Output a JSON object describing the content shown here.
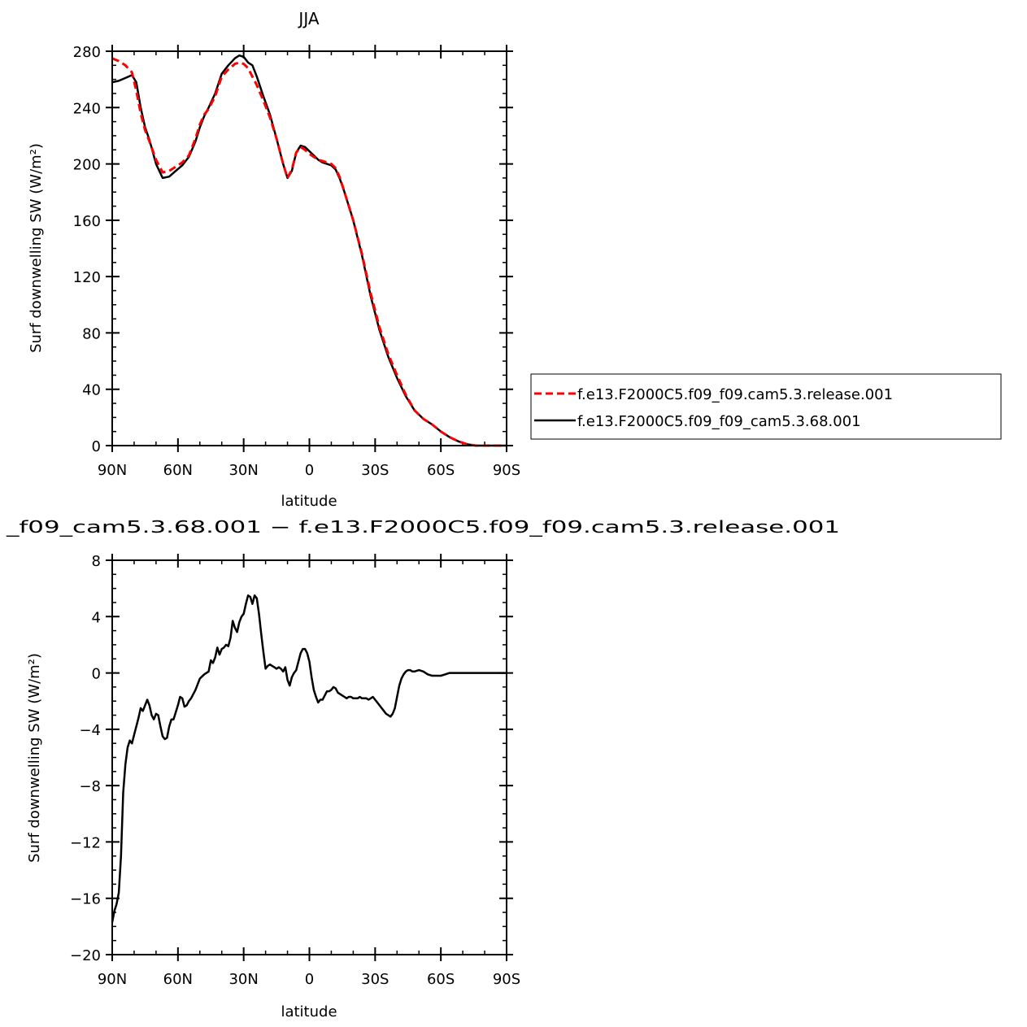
{
  "chart_data": [
    {
      "type": "line",
      "title": "JJA",
      "xlabel": "latitude",
      "ylabel": "Surf downwelling SW (W/m²)",
      "xlim": [
        90,
        -90
      ],
      "ylim": [
        0,
        280
      ],
      "xticks": [
        90,
        60,
        30,
        0,
        -30,
        -60,
        -90
      ],
      "xtick_labels": [
        "90N",
        "60N",
        "30N",
        "0",
        "30S",
        "60S",
        "90S"
      ],
      "yticks": [
        0,
        40,
        80,
        120,
        160,
        200,
        240,
        280
      ],
      "ytick_labels": [
        "0",
        "40",
        "80",
        "120",
        "160",
        "200",
        "240",
        "280"
      ],
      "legend_position": "right",
      "series": [
        {
          "name": "f.e13.F2000C5.f09_f09.cam5.3.release.001",
          "color": "#ff0000",
          "dash": "dashed",
          "x": [
            90,
            87,
            84,
            81,
            79,
            77,
            75,
            73,
            70,
            67,
            64,
            61,
            58,
            55,
            52,
            50,
            48,
            46,
            43,
            40,
            37,
            34,
            32,
            30,
            28,
            26,
            24,
            21,
            18,
            15,
            12,
            10,
            8,
            6,
            4,
            2,
            0,
            -2,
            -4,
            -6,
            -8,
            -10,
            -12,
            -14,
            -16,
            -18,
            -20,
            -24,
            -28,
            -32,
            -36,
            -40,
            -44,
            -48,
            -52,
            -56,
            -60,
            -64,
            -68,
            -72,
            -76,
            -79,
            -82,
            -85,
            -88,
            -90
          ],
          "y": [
            275,
            273,
            270,
            265,
            252,
            236,
            224,
            216,
            203,
            194,
            195,
            198,
            201,
            206,
            218,
            228,
            235,
            239,
            248,
            262,
            267,
            271,
            272,
            271,
            268,
            262,
            256,
            245,
            233,
            218,
            200,
            190,
            196,
            208,
            212,
            210,
            207,
            205,
            203,
            202,
            201,
            200,
            197,
            190,
            180,
            170,
            160,
            136,
            108,
            84,
            65,
            50,
            36,
            25,
            19,
            15,
            10,
            6,
            3,
            1,
            0,
            0,
            0,
            0,
            0,
            0
          ]
        },
        {
          "name": "f.e13.F2000C5.f09_f09_cam5.3.68.001",
          "color": "#000000",
          "dash": "solid",
          "x": [
            90,
            87,
            84,
            81,
            79,
            77,
            75,
            73,
            70,
            67,
            64,
            61,
            58,
            55,
            52,
            50,
            48,
            46,
            43,
            40,
            37,
            34,
            32,
            30,
            28,
            26,
            24,
            21,
            18,
            15,
            12,
            10,
            8,
            6,
            4,
            2,
            0,
            -2,
            -4,
            -6,
            -8,
            -10,
            -12,
            -14,
            -16,
            -18,
            -20,
            -24,
            -28,
            -32,
            -36,
            -40,
            -44,
            -48,
            -52,
            -56,
            -60,
            -64,
            -68,
            -72,
            -76,
            -79,
            -82,
            -85,
            -88,
            -90
          ],
          "y": [
            258,
            259,
            261,
            263,
            258,
            240,
            226,
            217,
            200,
            190,
            191,
            195,
            199,
            205,
            216,
            226,
            234,
            240,
            250,
            264,
            270,
            275,
            277,
            276,
            272,
            270,
            262,
            248,
            235,
            218,
            200,
            190,
            195,
            208,
            213,
            212,
            209,
            206,
            203,
            201,
            200,
            199,
            196,
            189,
            180,
            170,
            160,
            135,
            106,
            82,
            63,
            48,
            35,
            25,
            19,
            15,
            10,
            6,
            3,
            1,
            0,
            0,
            0,
            0,
            0,
            0
          ]
        }
      ]
    },
    {
      "type": "line",
      "title": "_f09_cam5.3.68.001 − f.e13.F2000C5.f09_f09.cam5.3.release.001",
      "xlabel": "latitude",
      "ylabel": "Surf downwelling SW (W/m²)",
      "xlim": [
        90,
        -90
      ],
      "ylim": [
        -20,
        8
      ],
      "xticks": [
        90,
        60,
        30,
        0,
        -30,
        -60,
        -90
      ],
      "xtick_labels": [
        "90N",
        "60N",
        "30N",
        "0",
        "30S",
        "60S",
        "90S"
      ],
      "yticks": [
        -20,
        -16,
        -12,
        -8,
        -4,
        0,
        4,
        8
      ],
      "ytick_labels": [
        "−20",
        "−16",
        "−12",
        "−8",
        "−4",
        "0",
        "4",
        "8"
      ],
      "series": [
        {
          "name": "",
          "color": "#000000",
          "dash": "solid",
          "x": [
            90,
            89,
            88,
            87,
            86,
            85,
            84,
            83,
            82,
            81,
            80,
            79,
            78,
            77,
            76,
            75,
            74,
            73,
            72,
            71,
            70,
            69,
            68,
            67,
            66,
            65,
            64,
            63,
            62,
            61,
            60,
            59,
            58,
            57,
            56,
            55,
            54,
            52,
            50,
            48,
            47,
            46,
            45,
            44,
            43,
            42,
            41,
            40,
            39,
            38,
            37,
            36,
            35,
            34,
            33,
            32,
            31,
            30,
            29,
            28,
            27,
            26,
            25,
            24,
            23,
            22,
            21,
            20,
            19,
            18,
            17,
            16,
            15,
            14,
            13,
            12,
            11,
            10,
            9,
            8,
            7,
            6,
            5,
            4,
            3,
            2,
            1,
            0,
            -1,
            -2,
            -3,
            -4,
            -5,
            -6,
            -7,
            -8,
            -9,
            -10,
            -11,
            -12,
            -13,
            -14,
            -15,
            -16,
            -17,
            -18,
            -19,
            -20,
            -21,
            -22,
            -23,
            -24,
            -25,
            -26,
            -27,
            -28,
            -29,
            -30,
            -31,
            -32,
            -33,
            -34,
            -35,
            -36,
            -37,
            -38,
            -39,
            -40,
            -41,
            -42,
            -43,
            -44,
            -45,
            -46,
            -47,
            -48,
            -50,
            -52,
            -54,
            -56,
            -58,
            -60,
            -62,
            -64,
            -66,
            -68,
            -70,
            -75,
            -80,
            -85,
            -90
          ],
          "y": [
            -17.7,
            -16.9,
            -16.4,
            -15.6,
            -13.0,
            -8.5,
            -6.5,
            -5.3,
            -4.8,
            -5.0,
            -4.4,
            -3.8,
            -3.2,
            -2.5,
            -2.7,
            -2.3,
            -1.9,
            -2.3,
            -3.0,
            -3.3,
            -2.9,
            -3.0,
            -3.8,
            -4.5,
            -4.7,
            -4.6,
            -3.8,
            -3.3,
            -3.3,
            -2.8,
            -2.3,
            -1.7,
            -1.8,
            -2.4,
            -2.3,
            -2.0,
            -1.8,
            -1.2,
            -0.4,
            -0.1,
            0.0,
            0.1,
            0.9,
            0.7,
            1.1,
            1.8,
            1.3,
            1.7,
            1.8,
            2.0,
            1.9,
            2.5,
            3.7,
            3.2,
            2.9,
            3.6,
            4.0,
            4.2,
            4.9,
            5.5,
            5.4,
            4.9,
            5.5,
            5.3,
            4.2,
            2.8,
            1.5,
            0.3,
            0.5,
            0.6,
            0.5,
            0.4,
            0.3,
            0.4,
            0.3,
            0.1,
            0.4,
            -0.5,
            -0.9,
            -0.3,
            0.0,
            0.2,
            0.8,
            1.4,
            1.7,
            1.7,
            1.4,
            0.8,
            -0.3,
            -1.2,
            -1.7,
            -2.1,
            -1.9,
            -1.9,
            -1.6,
            -1.3,
            -1.3,
            -1.2,
            -1.0,
            -1.1,
            -1.4,
            -1.5,
            -1.6,
            -1.7,
            -1.8,
            -1.7,
            -1.7,
            -1.8,
            -1.8,
            -1.8,
            -1.7,
            -1.8,
            -1.8,
            -1.8,
            -1.9,
            -1.8,
            -1.7,
            -1.9,
            -2.1,
            -2.3,
            -2.5,
            -2.7,
            -2.9,
            -3.0,
            -3.1,
            -2.9,
            -2.5,
            -1.7,
            -0.9,
            -0.4,
            -0.1,
            0.1,
            0.2,
            0.2,
            0.1,
            0.1,
            0.2,
            0.1,
            -0.1,
            -0.2,
            -0.2,
            -0.2,
            -0.1,
            0.0,
            0.0,
            0.0,
            0.0,
            0.0,
            0.0,
            0.0,
            0.0
          ]
        }
      ]
    }
  ]
}
